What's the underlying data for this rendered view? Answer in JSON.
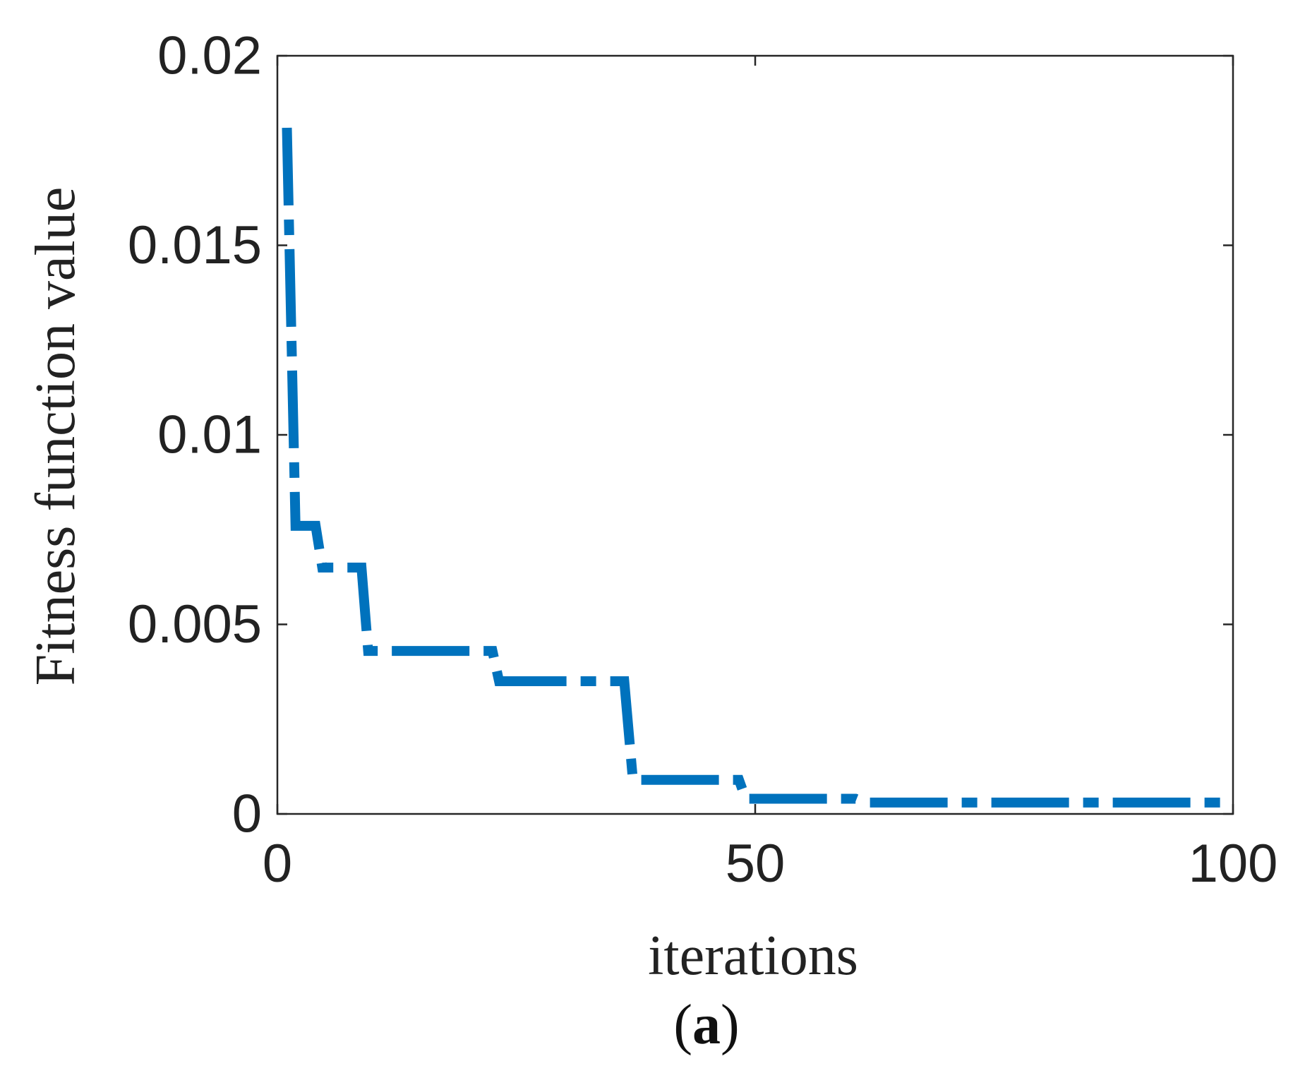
{
  "chart_data": {
    "type": "line",
    "xlabel": "iterations",
    "ylabel": "Fitness function value",
    "xlim": [
      0,
      100
    ],
    "ylim": [
      0,
      0.02
    ],
    "xticks": [
      0,
      50,
      100
    ],
    "xtick_labels": [
      "0",
      "50",
      "100"
    ],
    "yticks": [
      0,
      0.005,
      0.01,
      0.015,
      0.02
    ],
    "ytick_labels": [
      "0",
      "0.005",
      "0.01",
      "0.015",
      "0.02"
    ],
    "grid": false,
    "series": [
      {
        "line_style": "dash-dot",
        "color": "#0072BD",
        "x": [
          1,
          1.9,
          2,
          3,
          4,
          4.7,
          5,
          8.8,
          9.5,
          22.5,
          23.2,
          36.3,
          37.2,
          48.3,
          49,
          60.5,
          61.5,
          100
        ],
        "y": [
          0.0181,
          0.0076,
          0.0076,
          0.0076,
          0.0076,
          0.0065,
          0.0065,
          0.0065,
          0.0043,
          0.0043,
          0.0035,
          0.0035,
          0.0009,
          0.0009,
          0.0004,
          0.0004,
          0.0003,
          0.0003
        ]
      }
    ]
  },
  "caption": {
    "open": "(",
    "letter": "a",
    "close": ")"
  }
}
